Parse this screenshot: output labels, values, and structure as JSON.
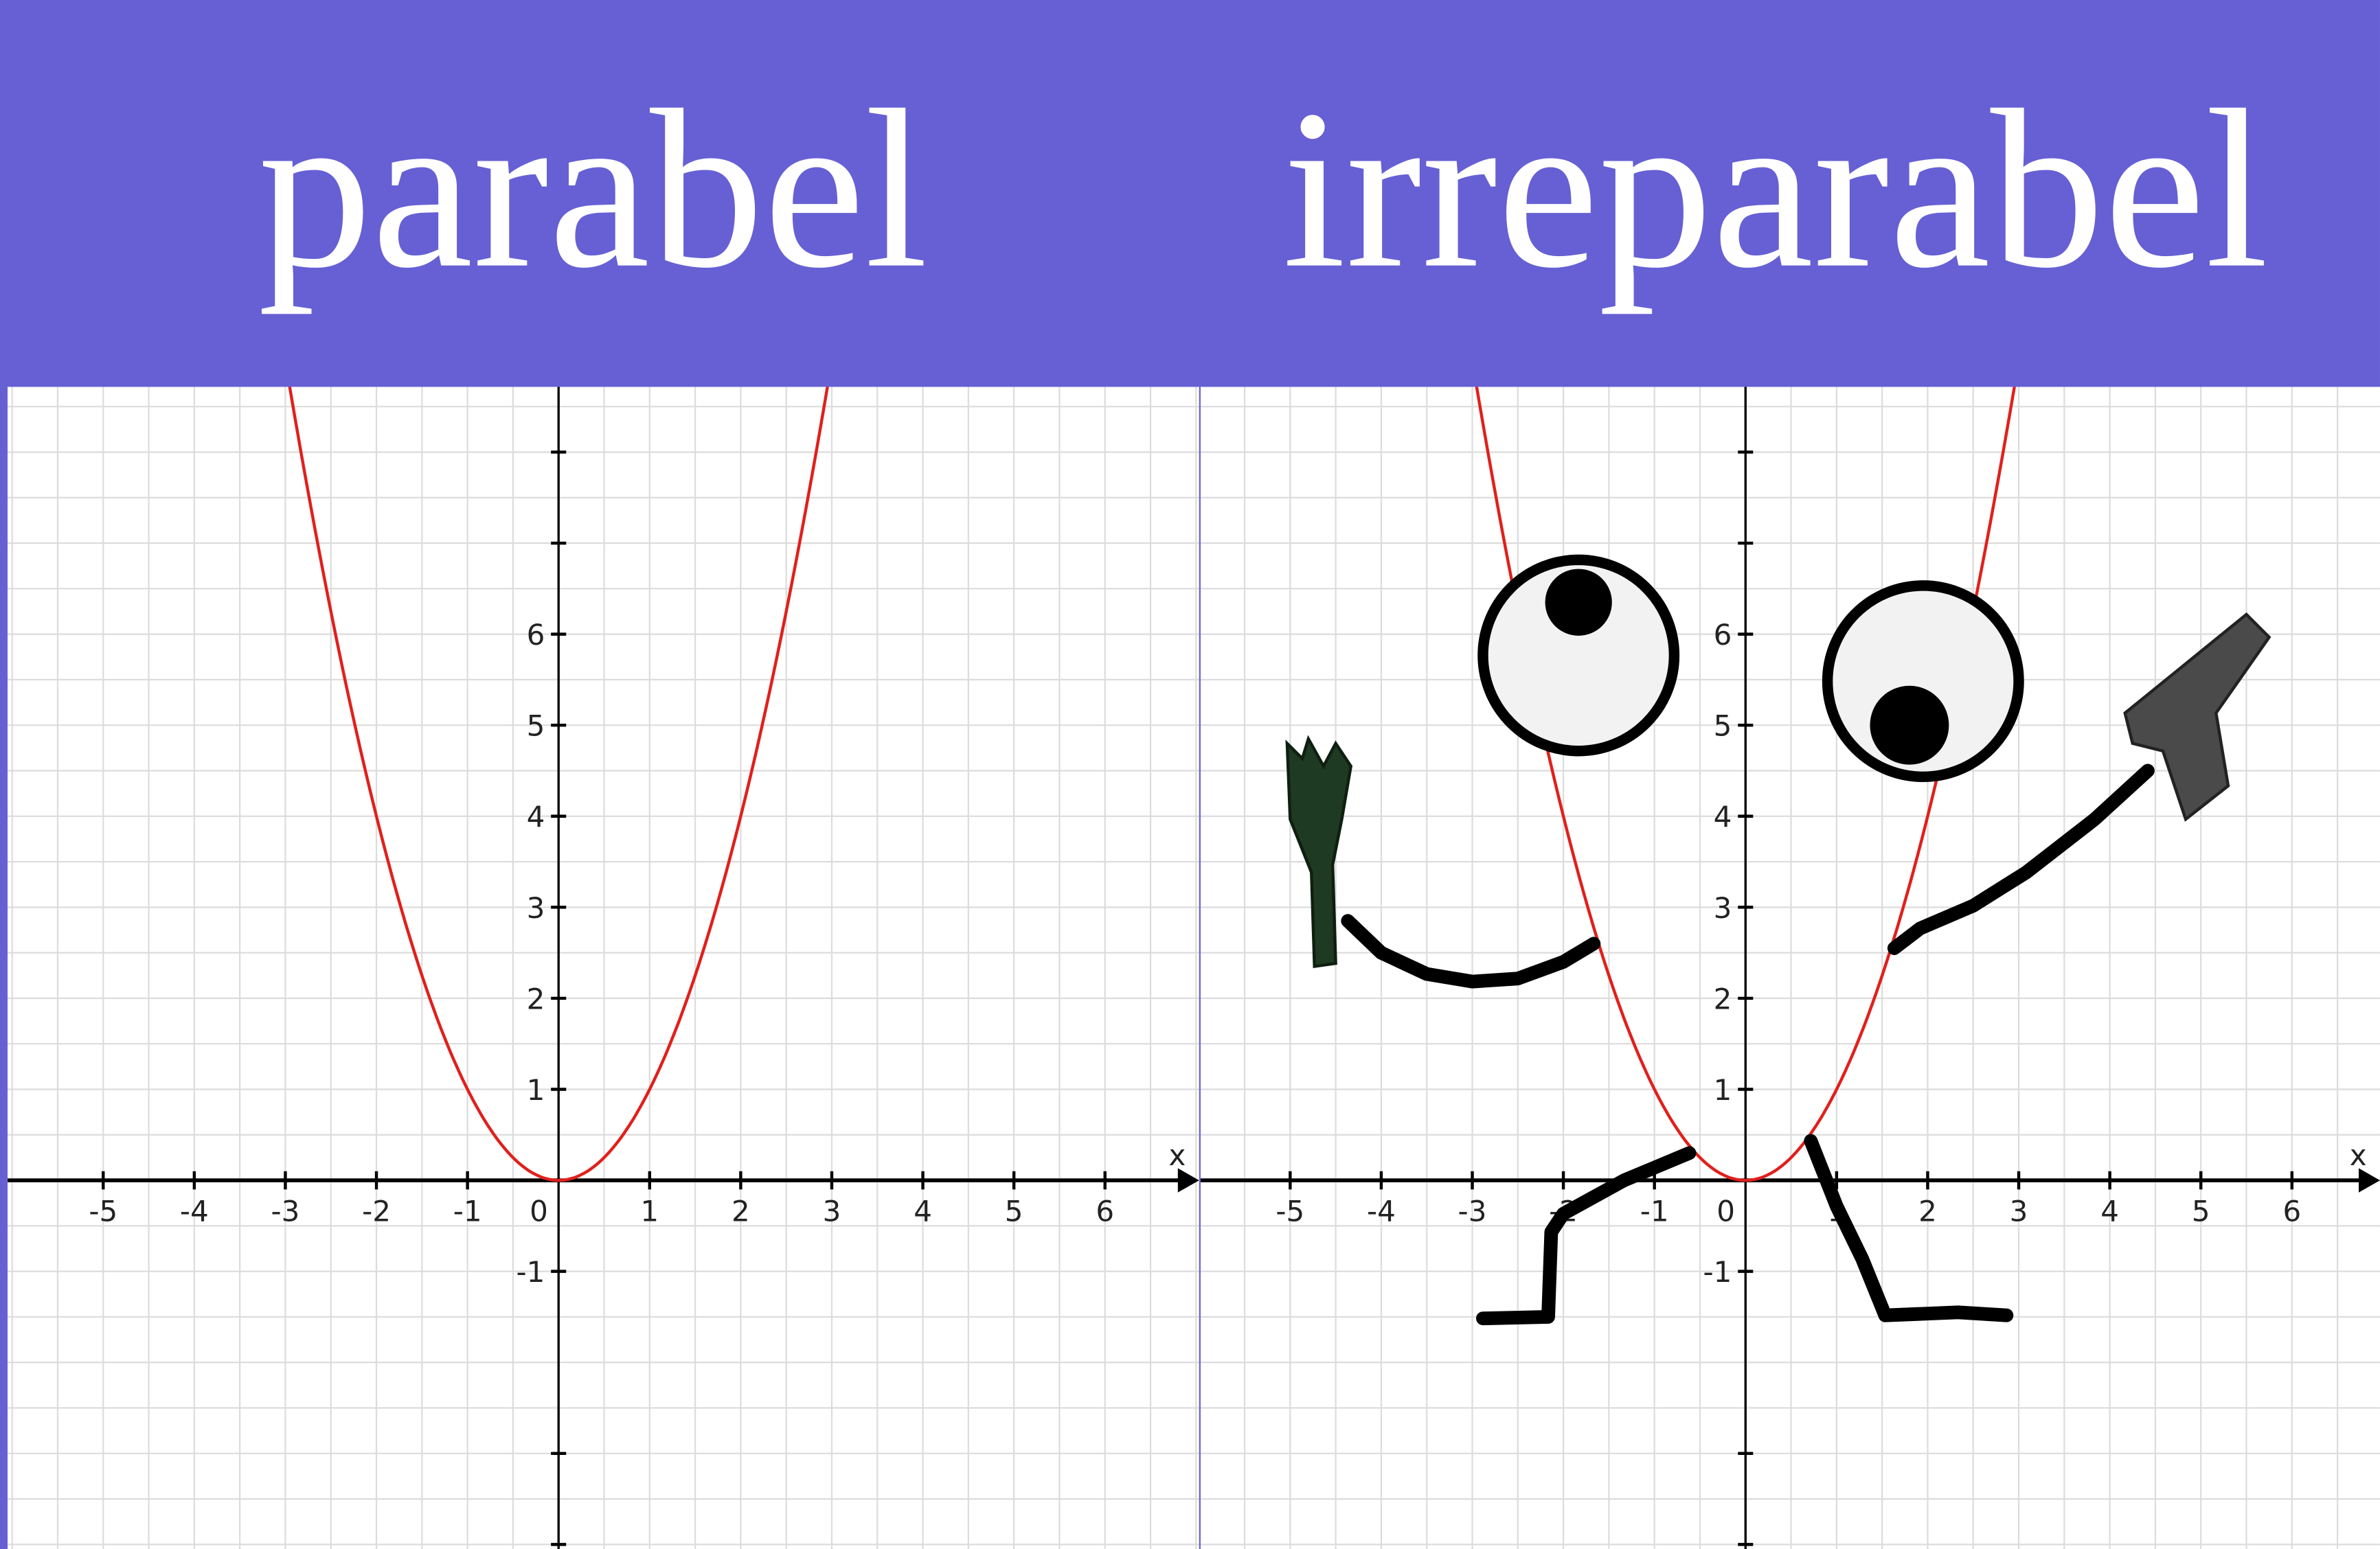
{
  "header": {
    "left_title": "parabel",
    "right_title": "irreparabel",
    "background_color": "#6660d4"
  },
  "chart_data": [
    {
      "type": "line",
      "panel": "left",
      "xlabel": "x",
      "x_ticks": [
        "-5",
        "-4",
        "-3",
        "-2",
        "-1",
        "0",
        "1",
        "2",
        "3",
        "4",
        "5",
        "6"
      ],
      "y_ticks": [
        "6",
        "5",
        "4",
        "3",
        "2",
        "1",
        "-1"
      ],
      "xlim": [
        -6,
        7
      ],
      "ylim": [
        -4,
        8.7
      ],
      "grid": true,
      "series": [
        {
          "x": [
            -3,
            -2,
            -1,
            0,
            1,
            2,
            3
          ],
          "y": [
            9,
            4,
            1,
            0,
            1,
            4,
            9
          ],
          "color": "#e0201c"
        }
      ]
    },
    {
      "type": "line",
      "panel": "right",
      "xlabel": "x",
      "x_ticks": [
        "-5",
        "-4",
        "-3",
        "-2",
        "-1",
        "0",
        "1",
        "2",
        "3",
        "4",
        "5",
        "6"
      ],
      "y_ticks": [
        "6",
        "5",
        "4",
        "3",
        "2",
        "1",
        "-1"
      ],
      "xlim": [
        -6,
        7
      ],
      "ylim": [
        -4,
        8.7
      ],
      "grid": true,
      "series": [
        {
          "x": [
            -3,
            -2,
            -1,
            0,
            1,
            2,
            3
          ],
          "y": [
            9,
            4,
            1,
            0,
            1,
            4,
            9
          ],
          "color": "#e0201c"
        }
      ],
      "decorations": [
        "googly-eyes",
        "arms",
        "legs",
        "broken-bottle",
        "pistol"
      ]
    }
  ]
}
